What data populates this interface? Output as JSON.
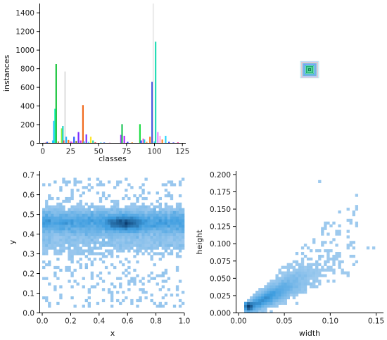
{
  "chart_data": [
    {
      "id": "instances_per_class",
      "type": "bar",
      "xlabel": "classes",
      "ylabel": "instances",
      "xlim": [
        -3,
        128
      ],
      "ylim": [
        0,
        1500
      ],
      "xticks": [
        0,
        25,
        50,
        75,
        100,
        125
      ],
      "yticks": [
        0,
        200,
        400,
        600,
        800,
        1000,
        1200,
        1400
      ],
      "bars": [
        {
          "x": 1,
          "value": 5,
          "color": "#3a2cff"
        },
        {
          "x": 3,
          "value": 8,
          "color": "#ff2a2a"
        },
        {
          "x": 4,
          "value": 15,
          "color": "#2b6cff"
        },
        {
          "x": 6,
          "value": 6,
          "color": "#ff9d2a"
        },
        {
          "x": 9,
          "value": 30,
          "color": "#22c9ff"
        },
        {
          "x": 10,
          "value": 240,
          "color": "#1fb8ff"
        },
        {
          "x": 11,
          "value": 370,
          "color": "#26f2c2"
        },
        {
          "x": 12,
          "value": 850,
          "color": "#1bc53e"
        },
        {
          "x": 14,
          "value": 20,
          "color": "#c48a44"
        },
        {
          "x": 17,
          "value": 160,
          "color": "#8ef03a"
        },
        {
          "x": 18,
          "value": 185,
          "color": "#22d3c4"
        },
        {
          "x": 19,
          "value": 30,
          "color": "#ff4040"
        },
        {
          "x": 20,
          "value": 770,
          "color": "#e0e0e0"
        },
        {
          "x": 21,
          "value": 70,
          "color": "#27b4ff"
        },
        {
          "x": 23,
          "value": 35,
          "color": "#ff7a1a"
        },
        {
          "x": 25,
          "value": 20,
          "color": "#b062ff"
        },
        {
          "x": 26,
          "value": 15,
          "color": "#ff4dd2"
        },
        {
          "x": 28,
          "value": 70,
          "color": "#2a5bff"
        },
        {
          "x": 30,
          "value": 25,
          "color": "#7a8c2c"
        },
        {
          "x": 32,
          "value": 120,
          "color": "#7b2aff"
        },
        {
          "x": 34,
          "value": 30,
          "color": "#c12cff"
        },
        {
          "x": 36,
          "value": 410,
          "color": "#f06a1e"
        },
        {
          "x": 37,
          "value": 20,
          "color": "#2bc3ff"
        },
        {
          "x": 39,
          "value": 95,
          "color": "#7a35ff"
        },
        {
          "x": 41,
          "value": 15,
          "color": "#4dd6ff"
        },
        {
          "x": 43,
          "value": 70,
          "color": "#ffe62a"
        },
        {
          "x": 45,
          "value": 30,
          "color": "#30d8a8"
        },
        {
          "x": 47,
          "value": 10,
          "color": "#ff3a3a"
        },
        {
          "x": 52,
          "value": 8,
          "color": "#27e5ff"
        },
        {
          "x": 55,
          "value": 8,
          "color": "#1d5cff"
        },
        {
          "x": 60,
          "value": 6,
          "color": "#ff5ad1"
        },
        {
          "x": 70,
          "value": 90,
          "color": "#aa36ff"
        },
        {
          "x": 71,
          "value": 205,
          "color": "#1fc65a"
        },
        {
          "x": 73,
          "value": 80,
          "color": "#b92cff"
        },
        {
          "x": 76,
          "value": 15,
          "color": "#3c3cff"
        },
        {
          "x": 80,
          "value": 10,
          "color": "#ff9a2a"
        },
        {
          "x": 87,
          "value": 205,
          "color": "#20dd45"
        },
        {
          "x": 88,
          "value": 30,
          "color": "#2a43ff"
        },
        {
          "x": 90,
          "value": 50,
          "color": "#ff44cc"
        },
        {
          "x": 91,
          "value": 40,
          "color": "#1ad9e6"
        },
        {
          "x": 93,
          "value": 15,
          "color": "#ffa040"
        },
        {
          "x": 96,
          "value": 70,
          "color": "#ff7a2a"
        },
        {
          "x": 98,
          "value": 660,
          "color": "#1a2fd6"
        },
        {
          "x": 99,
          "value": 1500,
          "color": "#ececec"
        },
        {
          "x": 100,
          "value": 20,
          "color": "#3bd0ff"
        },
        {
          "x": 101,
          "value": 1090,
          "color": "#22dcb4"
        },
        {
          "x": 103,
          "value": 120,
          "color": "#e98aff"
        },
        {
          "x": 105,
          "value": 80,
          "color": "#ffb5e6"
        },
        {
          "x": 107,
          "value": 40,
          "color": "#ff8a2a"
        },
        {
          "x": 110,
          "value": 80,
          "color": "#2ad4ff"
        },
        {
          "x": 113,
          "value": 15,
          "color": "#3340ff"
        },
        {
          "x": 117,
          "value": 8,
          "color": "#2a2aff"
        },
        {
          "x": 121,
          "value": 10,
          "color": "#ff3aa8"
        }
      ]
    },
    {
      "id": "box_overlay",
      "type": "other",
      "description_colors": [
        "#2a5cff",
        "#22c9a0",
        "#ff9a2a",
        "#9a3aff",
        "#2ad4ff",
        "#8ef03a"
      ],
      "center": [
        0.5,
        0.5
      ],
      "boxes": [
        {
          "w": 0.1,
          "h": 0.09,
          "color": "#b8ecec"
        },
        {
          "w": 0.09,
          "h": 0.085,
          "color": "#c7c7ff"
        },
        {
          "w": 0.085,
          "h": 0.08,
          "color": "#ffd2a6"
        },
        {
          "w": 0.08,
          "h": 0.075,
          "color": "#d2b0ff"
        },
        {
          "w": 0.075,
          "h": 0.07,
          "color": "#9fdcff"
        },
        {
          "w": 0.07,
          "h": 0.065,
          "color": "#6ad6b0"
        },
        {
          "w": 0.062,
          "h": 0.06,
          "color": "#7d7dff"
        },
        {
          "w": 0.055,
          "h": 0.052,
          "color": "#4ac0ff"
        },
        {
          "w": 0.045,
          "h": 0.045,
          "color": "#2fbf8f"
        },
        {
          "w": 0.035,
          "h": 0.035,
          "color": "#1aa870"
        },
        {
          "w": 0.025,
          "h": 0.025,
          "color": "#23d07a"
        },
        {
          "w": 0.012,
          "h": 0.012,
          "color": "#0a7a55"
        }
      ]
    },
    {
      "id": "xy_hist",
      "type": "heatmap",
      "xlabel": "x",
      "ylabel": "y",
      "xlim": [
        -0.02,
        1.0
      ],
      "ylim": [
        0.0,
        0.72
      ],
      "xticks": [
        0.0,
        0.2,
        0.4,
        0.6,
        0.8,
        1.0
      ],
      "yticks": [
        0.0,
        0.1,
        0.2,
        0.3,
        0.4,
        0.5,
        0.6,
        0.7
      ],
      "colors": {
        "light": "#a9cff0",
        "mid": "#3f9ee0",
        "dark": "#0b3d70"
      }
    },
    {
      "id": "wh_hist",
      "type": "heatmap",
      "xlabel": "width",
      "ylabel": "height",
      "xlim": [
        -0.003,
        0.158
      ],
      "ylim": [
        0.0,
        0.205
      ],
      "xticks": [
        0.0,
        0.05,
        0.1,
        0.15
      ],
      "yticks": [
        0.0,
        0.025,
        0.05,
        0.075,
        0.1,
        0.125,
        0.15,
        0.175,
        0.2
      ],
      "colors": {
        "light": "#a9cff0",
        "mid": "#3f9ee0",
        "dark": "#0b3d70"
      }
    }
  ]
}
